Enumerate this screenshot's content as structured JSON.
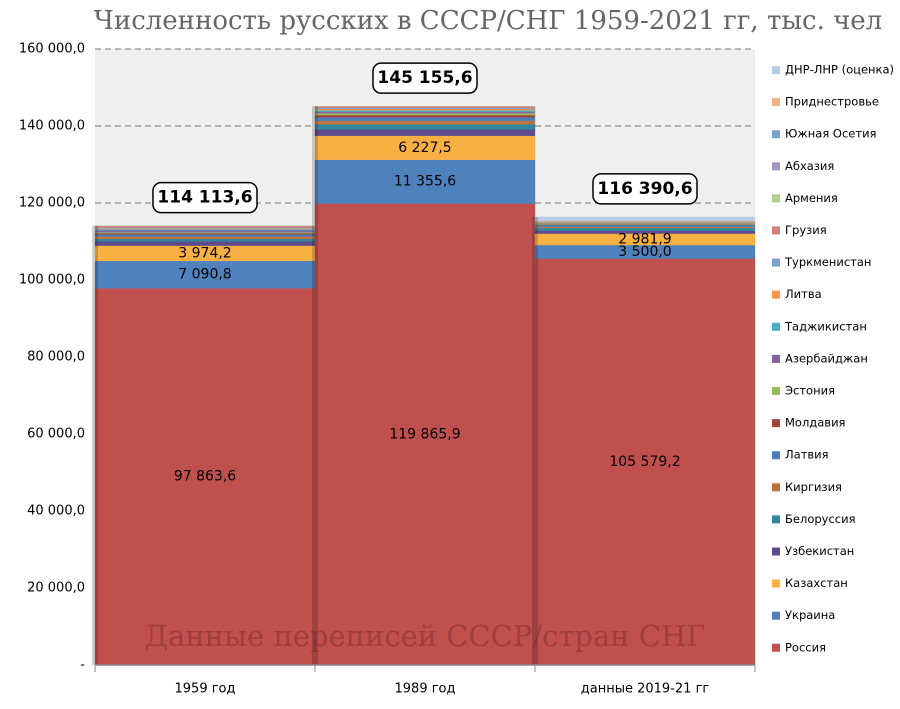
{
  "chart_data": {
    "type": "stacked_bar",
    "title": "Численность русских в СССР/СНГ 1959-2021 гг, тыс. чел",
    "annotation": "Данные переписей СССР/стран СНГ",
    "categories": [
      "1959 год",
      "1989 год",
      "данные 2019-21 гг"
    ],
    "ylim": [
      0,
      160000
    ],
    "yticks": [
      {
        "value": 0,
        "label": "-"
      },
      {
        "value": 20000,
        "label": "20 000,0"
      },
      {
        "value": 40000,
        "label": "40 000,0"
      },
      {
        "value": 60000,
        "label": "60 000,0"
      },
      {
        "value": 80000,
        "label": "80 000,0"
      },
      {
        "value": 100000,
        "label": "100 000,0"
      },
      {
        "value": 120000,
        "label": "120 000,0"
      },
      {
        "value": 140000,
        "label": "140 000,0"
      },
      {
        "value": 160000,
        "label": "160 000,0"
      }
    ],
    "grid": true,
    "legend": "right",
    "totals": {
      "values": [
        114113.6,
        145155.6,
        116390.6
      ],
      "value_labels": [
        "114 113,6",
        "145 155,6",
        "116 390,6"
      ]
    },
    "series": [
      {
        "name": "Россия",
        "color": "#c0504d",
        "values": [
          97863.6,
          119865.9,
          105579.2
        ],
        "value_labels": [
          "97 863,6",
          "119 865,9",
          "105 579,2"
        ]
      },
      {
        "name": "Украина",
        "color": "#4f81bd",
        "values": [
          7090.8,
          11355.6,
          3500.0
        ],
        "value_labels": [
          "7 090,8",
          "11 355,6",
          "3 500,0"
        ]
      },
      {
        "name": "Казахстан",
        "color": "#f9b043",
        "values": [
          3974.2,
          6227.5,
          2981.9
        ],
        "value_labels": [
          "3 974,2",
          "6 227,5",
          "2 981,9"
        ]
      },
      {
        "name": "Узбекистан",
        "color": "#5f4b8b",
        "values": [
          1092,
          1653,
          750
        ]
      },
      {
        "name": "Белоруссия",
        "color": "#31859c",
        "values": [
          660,
          1342,
          706
        ]
      },
      {
        "name": "Киргизия",
        "color": "#c0743a",
        "values": [
          624,
          917,
          350
        ]
      },
      {
        "name": "Латвия",
        "color": "#4a7ebb",
        "values": [
          556,
          906,
          460
        ]
      },
      {
        "name": "Молдавия",
        "color": "#a5403d",
        "values": [
          293,
          562,
          110
        ]
      },
      {
        "name": "Эстония",
        "color": "#9bbb59",
        "values": [
          240,
          475,
          315
        ]
      },
      {
        "name": "Азербайджан",
        "color": "#8064a2",
        "values": [
          501,
          392,
          120
        ]
      },
      {
        "name": "Таджикистан",
        "color": "#4bacc6",
        "values": [
          263,
          388,
          30
        ]
      },
      {
        "name": "Литва",
        "color": "#f79646",
        "values": [
          231,
          344,
          137
        ]
      },
      {
        "name": "Туркменистан",
        "color": "#7f9fcf",
        "values": [
          263,
          334,
          100
        ]
      },
      {
        "name": "Грузия",
        "color": "#d9807e",
        "values": [
          408,
          341,
          26
        ]
      },
      {
        "name": "Армения",
        "color": "#b3cf8a",
        "values": [
          54,
          52,
          15
        ]
      },
      {
        "name": "Абхазия",
        "color": "#a495bf",
        "values": [
          0,
          0,
          22
        ]
      },
      {
        "name": "Южная Осетия",
        "color": "#7ba1cf",
        "values": [
          0,
          0,
          2
        ]
      },
      {
        "name": "Приднестровье",
        "color": "#f4b183",
        "values": [
          0,
          0,
          140
        ]
      },
      {
        "name": "ДНР-ЛНР (оценка)",
        "color": "#b8cce4",
        "values": [
          0,
          0,
          1046.5
        ]
      }
    ]
  }
}
